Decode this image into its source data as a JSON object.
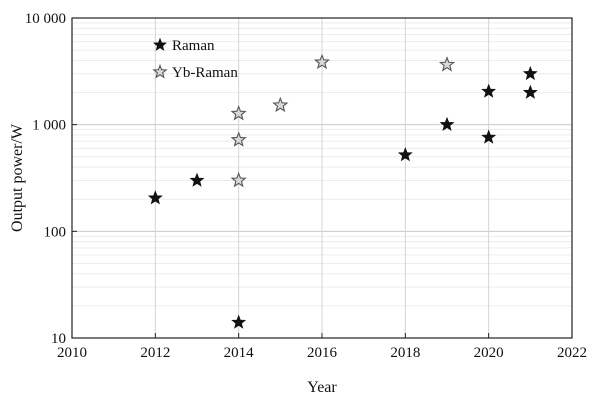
{
  "chart_data": {
    "type": "scatter",
    "xlabel": "Year",
    "ylabel": "Output power/W",
    "xlim": [
      2010,
      2022
    ],
    "ylim": [
      10,
      10000
    ],
    "yscale": "log",
    "grid": true,
    "legend_position": "top-left",
    "x_ticks": [
      2010,
      2012,
      2014,
      2016,
      2018,
      2020,
      2022
    ],
    "x_tick_labels": [
      "2010",
      "2012",
      "2014",
      "2016",
      "2018",
      "2020",
      "2022"
    ],
    "y_ticks": [
      10,
      100,
      1000,
      10000
    ],
    "y_tick_labels": [
      "10",
      "100",
      "1 000",
      "10 000"
    ],
    "series": [
      {
        "name": "Raman",
        "marker": "filled-star",
        "color": "#111111",
        "points": [
          {
            "x": 2012,
            "y": 205
          },
          {
            "x": 2013,
            "y": 300
          },
          {
            "x": 2014,
            "y": 14
          },
          {
            "x": 2018,
            "y": 520
          },
          {
            "x": 2019,
            "y": 1000
          },
          {
            "x": 2020,
            "y": 760
          },
          {
            "x": 2020,
            "y": 2050
          },
          {
            "x": 2021,
            "y": 2000
          },
          {
            "x": 2021,
            "y": 3000
          }
        ]
      },
      {
        "name": "Yb-Raman",
        "marker": "hollow-star",
        "color": "#555555",
        "points": [
          {
            "x": 2014,
            "y": 300
          },
          {
            "x": 2014,
            "y": 720
          },
          {
            "x": 2014,
            "y": 1270
          },
          {
            "x": 2015,
            "y": 1520
          },
          {
            "x": 2016,
            "y": 3850
          },
          {
            "x": 2019,
            "y": 3650
          }
        ]
      }
    ]
  }
}
